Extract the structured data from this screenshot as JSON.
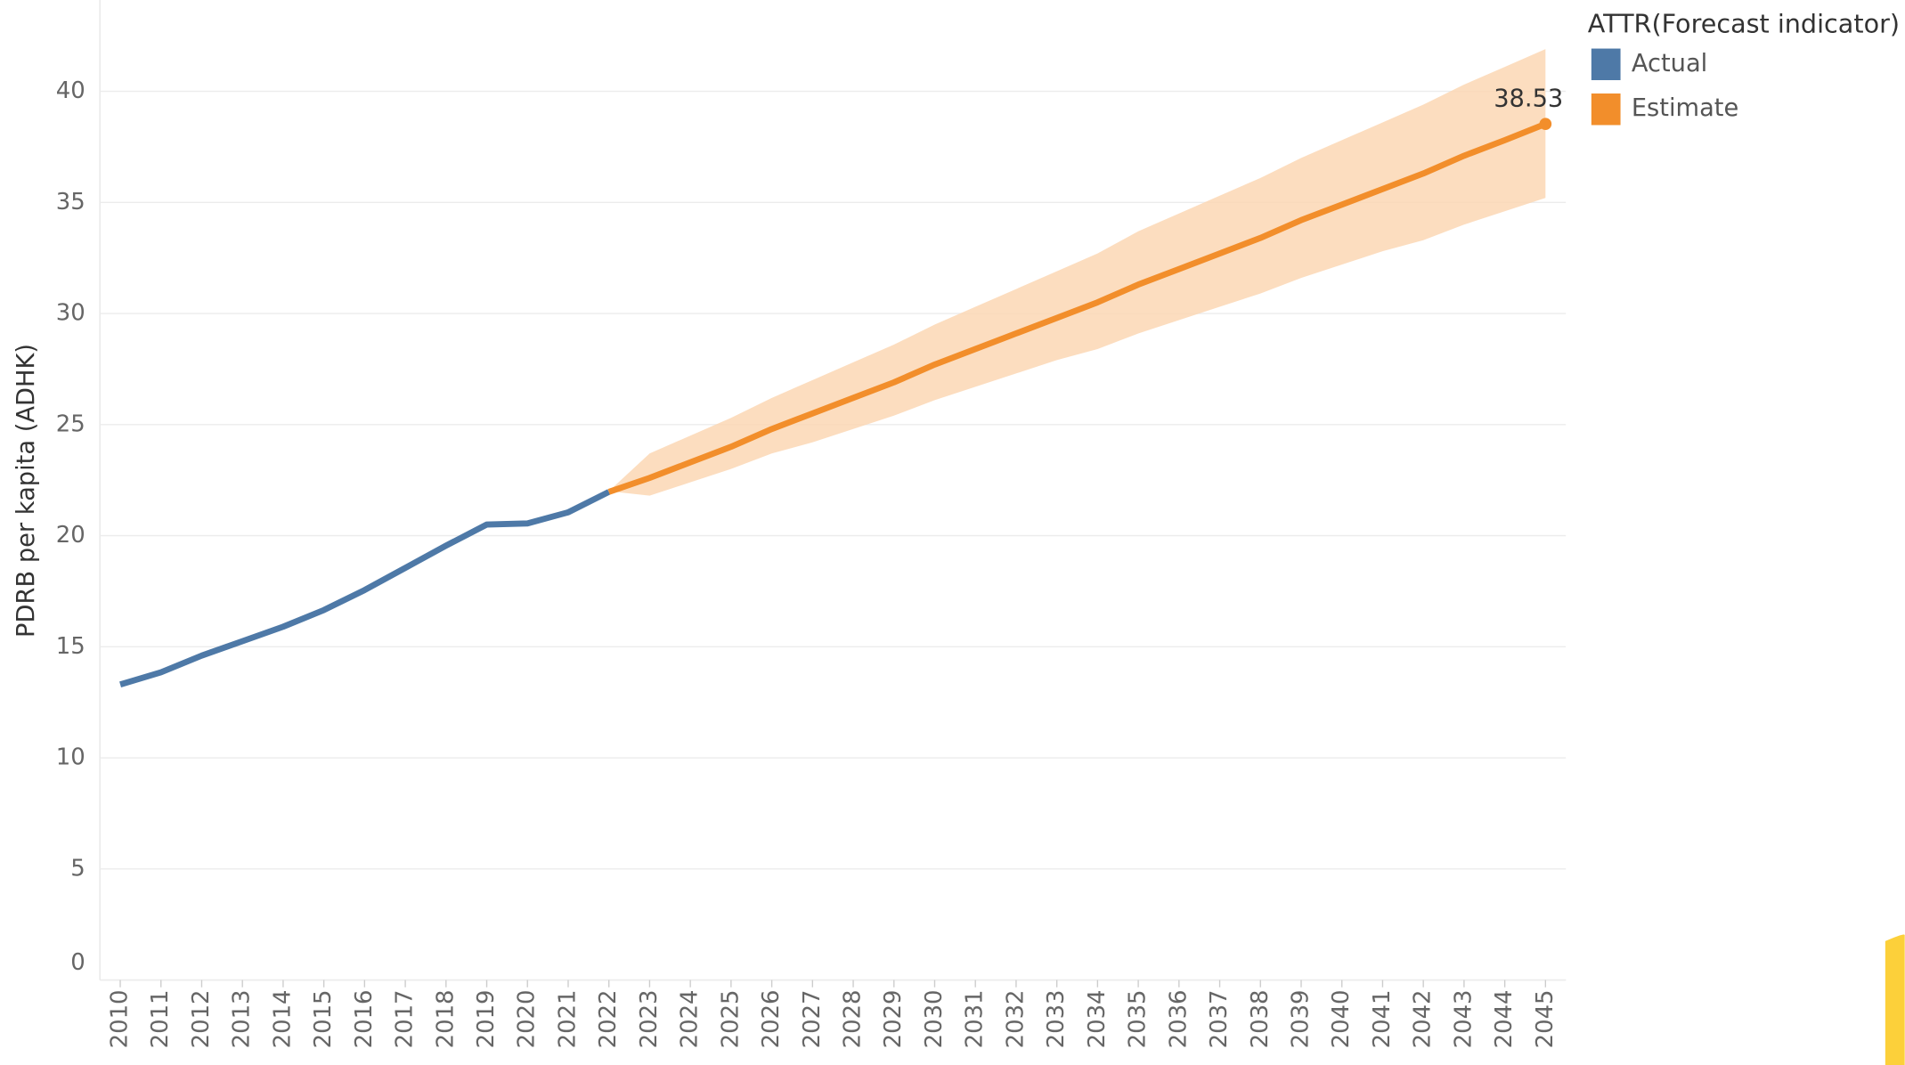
{
  "chart_data": {
    "type": "line",
    "y_label": "PDRB per kapita (ADHK)",
    "legend_title": "ATTR(Forecast indicator)",
    "legend": "top-right",
    "grid": true,
    "categories": [
      "2010",
      "2011",
      "2012",
      "2013",
      "2014",
      "2015",
      "2016",
      "2017",
      "2018",
      "2019",
      "2020",
      "2021",
      "2022",
      "2023",
      "2024",
      "2025",
      "2026",
      "2027",
      "2028",
      "2029",
      "2030",
      "2031",
      "2032",
      "2033",
      "2034",
      "2035",
      "2036",
      "2037",
      "2038",
      "2039",
      "2040",
      "2041",
      "2042",
      "2043",
      "2044",
      "2045"
    ],
    "series": [
      {
        "name": "Actual",
        "color": "#4e79a7",
        "values": [
          13.3,
          13.85,
          14.6,
          15.25,
          15.9,
          16.65,
          17.55,
          18.55,
          19.55,
          20.5,
          20.55,
          21.05,
          21.97,
          null,
          null,
          null,
          null,
          null,
          null,
          null,
          null,
          null,
          null,
          null,
          null,
          null,
          null,
          null,
          null,
          null,
          null,
          null,
          null,
          null,
          null,
          null
        ]
      },
      {
        "name": "Estimate",
        "color": "#f28e2b",
        "values": [
          null,
          null,
          null,
          null,
          null,
          null,
          null,
          null,
          null,
          null,
          null,
          null,
          21.97,
          22.6,
          23.3,
          24.0,
          24.8,
          25.5,
          26.2,
          26.9,
          27.7,
          28.4,
          29.1,
          29.8,
          30.5,
          31.3,
          32.0,
          32.7,
          33.4,
          34.2,
          34.9,
          35.6,
          36.3,
          37.1,
          37.8,
          38.53
        ]
      }
    ],
    "band": {
      "color": "#fbd7b4",
      "upper": [
        null,
        null,
        null,
        null,
        null,
        null,
        null,
        null,
        null,
        null,
        null,
        null,
        22.0,
        23.7,
        24.5,
        25.3,
        26.2,
        27.0,
        27.8,
        28.6,
        29.5,
        30.3,
        31.1,
        31.9,
        32.7,
        33.7,
        34.5,
        35.3,
        36.1,
        37.0,
        37.8,
        38.6,
        39.4,
        40.3,
        41.1,
        41.9
      ],
      "lower": [
        null,
        null,
        null,
        null,
        null,
        null,
        null,
        null,
        null,
        null,
        null,
        null,
        22.0,
        21.8,
        22.4,
        23.0,
        23.7,
        24.2,
        24.8,
        25.4,
        26.1,
        26.7,
        27.3,
        27.9,
        28.4,
        29.1,
        29.7,
        30.3,
        30.9,
        31.6,
        32.2,
        32.8,
        33.3,
        34.0,
        34.6,
        35.2
      ]
    },
    "ylim": [
      0,
      44
    ],
    "yticks": [
      0,
      5,
      10,
      15,
      20,
      25,
      30,
      35,
      40
    ]
  }
}
